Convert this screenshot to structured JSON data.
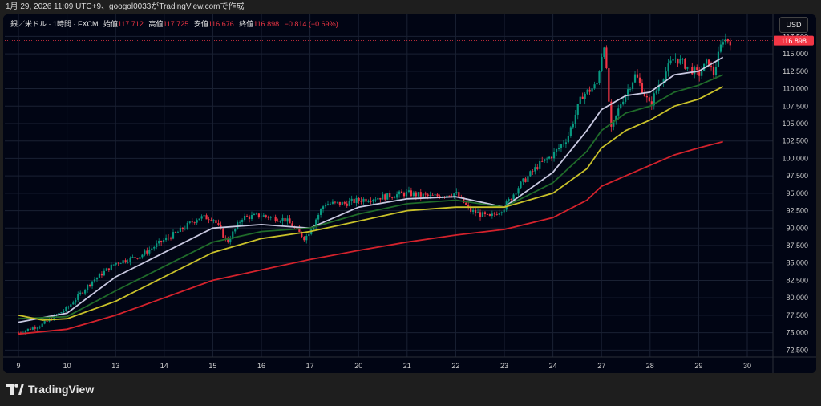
{
  "header": {
    "caption": "1月 29, 2026 11:09 UTC+9、googol0033がTradingView.comで作成"
  },
  "legend": {
    "symbol": "銀／米ドル · 1時間 · FXCM",
    "open_label": "始値",
    "open": "117.712",
    "high_label": "高値",
    "high": "117.725",
    "low_label": "安値",
    "low": "116.676",
    "close_label": "終値",
    "close": "116.898",
    "change": "−0.814 (−0.69%)"
  },
  "currency_button": "USD",
  "price_badge": "116.898",
  "brand": "TradingView",
  "colors": {
    "background": "#010514",
    "up": "#089981",
    "down": "#f23645",
    "ma_fast": "#c8c8e0",
    "ma_mid": "#1f6b2a",
    "ma_slow": "#c9c12a",
    "ma_long": "#d3222c",
    "grid": "#1a2133"
  },
  "chart_data": {
    "type": "candlestick",
    "interval": "1時間",
    "x_ticks": [
      "9",
      "10",
      "13",
      "14",
      "15",
      "16",
      "17",
      "20",
      "21",
      "22",
      "23",
      "24",
      "27",
      "28",
      "29",
      "30"
    ],
    "y_ticks": [
      "72.500",
      "75.000",
      "77.500",
      "80.000",
      "82.500",
      "85.000",
      "87.500",
      "90.000",
      "92.500",
      "95.000",
      "97.500",
      "100.000",
      "102.500",
      "105.000",
      "107.500",
      "110.000",
      "112.500",
      "115.000",
      "117.500"
    ],
    "ylim": [
      71.5,
      119.5
    ],
    "last_price": 116.898,
    "price_path": [
      {
        "x": 0,
        "y": 75.0
      },
      {
        "x": 0.5,
        "y": 76.2
      },
      {
        "x": 1,
        "y": 78.5
      },
      {
        "x": 1.5,
        "y": 82.3
      },
      {
        "x": 2,
        "y": 85.0
      },
      {
        "x": 2.5,
        "y": 86.0
      },
      {
        "x": 3,
        "y": 88.3
      },
      {
        "x": 3.3,
        "y": 89.5
      },
      {
        "x": 3.7,
        "y": 91.5
      },
      {
        "x": 4,
        "y": 91.5
      },
      {
        "x": 4.3,
        "y": 88.0
      },
      {
        "x": 4.6,
        "y": 91.5
      },
      {
        "x": 5,
        "y": 91.8
      },
      {
        "x": 5.5,
        "y": 91.2
      },
      {
        "x": 5.9,
        "y": 88.5
      },
      {
        "x": 6.3,
        "y": 93.5
      },
      {
        "x": 6.7,
        "y": 93.5
      },
      {
        "x": 7,
        "y": 94.0
      },
      {
        "x": 7.5,
        "y": 94.5
      },
      {
        "x": 8,
        "y": 95.0
      },
      {
        "x": 8.5,
        "y": 94.5
      },
      {
        "x": 9,
        "y": 95.0
      },
      {
        "x": 9.3,
        "y": 92.5
      },
      {
        "x": 9.7,
        "y": 91.5
      },
      {
        "x": 10,
        "y": 93.0
      },
      {
        "x": 10.3,
        "y": 96.0
      },
      {
        "x": 10.7,
        "y": 99.0
      },
      {
        "x": 11,
        "y": 100.5
      },
      {
        "x": 11.3,
        "y": 103.0
      },
      {
        "x": 11.6,
        "y": 109.0
      },
      {
        "x": 11.9,
        "y": 110.5
      },
      {
        "x": 12.05,
        "y": 116.8
      },
      {
        "x": 12.2,
        "y": 104.0
      },
      {
        "x": 12.4,
        "y": 108.0
      },
      {
        "x": 12.7,
        "y": 112.0
      },
      {
        "x": 12.9,
        "y": 109.0
      },
      {
        "x": 13,
        "y": 107.5
      },
      {
        "x": 13.2,
        "y": 111.0
      },
      {
        "x": 13.5,
        "y": 114.5
      },
      {
        "x": 13.8,
        "y": 113.0
      },
      {
        "x": 14,
        "y": 112.0
      },
      {
        "x": 14.2,
        "y": 114.0
      },
      {
        "x": 14.3,
        "y": 112.0
      },
      {
        "x": 14.5,
        "y": 117.2
      },
      {
        "x": 14.65,
        "y": 116.9
      }
    ],
    "moving_averages": [
      {
        "name": "MA fast",
        "color": "#c8c8e0",
        "points": [
          {
            "x": 0,
            "y": 76.5
          },
          {
            "x": 1,
            "y": 77.8
          },
          {
            "x": 2,
            "y": 83.0
          },
          {
            "x": 3,
            "y": 86.5
          },
          {
            "x": 4,
            "y": 90.0
          },
          {
            "x": 5,
            "y": 90.5
          },
          {
            "x": 6,
            "y": 90.0
          },
          {
            "x": 7,
            "y": 93.0
          },
          {
            "x": 8,
            "y": 94.2
          },
          {
            "x": 9,
            "y": 94.5
          },
          {
            "x": 10,
            "y": 93.0
          },
          {
            "x": 11,
            "y": 98.0
          },
          {
            "x": 11.7,
            "y": 104.0
          },
          {
            "x": 12,
            "y": 107.0
          },
          {
            "x": 12.5,
            "y": 109.0
          },
          {
            "x": 13,
            "y": 109.5
          },
          {
            "x": 13.5,
            "y": 112.0
          },
          {
            "x": 14,
            "y": 112.5
          },
          {
            "x": 14.5,
            "y": 114.5
          }
        ]
      },
      {
        "name": "MA mid",
        "color": "#1f6b2a",
        "points": [
          {
            "x": 0,
            "y": 77.0
          },
          {
            "x": 1,
            "y": 77.3
          },
          {
            "x": 2,
            "y": 81.0
          },
          {
            "x": 3,
            "y": 84.5
          },
          {
            "x": 4,
            "y": 88.0
          },
          {
            "x": 5,
            "y": 89.5
          },
          {
            "x": 6,
            "y": 90.0
          },
          {
            "x": 7,
            "y": 92.0
          },
          {
            "x": 8,
            "y": 93.5
          },
          {
            "x": 9,
            "y": 94.0
          },
          {
            "x": 10,
            "y": 93.0
          },
          {
            "x": 11,
            "y": 96.5
          },
          {
            "x": 11.7,
            "y": 101.0
          },
          {
            "x": 12,
            "y": 104.0
          },
          {
            "x": 12.5,
            "y": 106.5
          },
          {
            "x": 13,
            "y": 107.5
          },
          {
            "x": 13.5,
            "y": 109.5
          },
          {
            "x": 14,
            "y": 110.5
          },
          {
            "x": 14.5,
            "y": 112.0
          }
        ]
      },
      {
        "name": "MA slow",
        "color": "#c9c12a",
        "points": [
          {
            "x": 0,
            "y": 77.5
          },
          {
            "x": 0.5,
            "y": 76.8
          },
          {
            "x": 1,
            "y": 77.0
          },
          {
            "x": 2,
            "y": 79.5
          },
          {
            "x": 3,
            "y": 83.0
          },
          {
            "x": 4,
            "y": 86.5
          },
          {
            "x": 5,
            "y": 88.5
          },
          {
            "x": 6,
            "y": 89.5
          },
          {
            "x": 7,
            "y": 91.0
          },
          {
            "x": 8,
            "y": 92.5
          },
          {
            "x": 9,
            "y": 93.0
          },
          {
            "x": 10,
            "y": 93.0
          },
          {
            "x": 11,
            "y": 95.0
          },
          {
            "x": 11.7,
            "y": 98.5
          },
          {
            "x": 12,
            "y": 101.5
          },
          {
            "x": 12.5,
            "y": 104.0
          },
          {
            "x": 13,
            "y": 105.5
          },
          {
            "x": 13.5,
            "y": 107.5
          },
          {
            "x": 14,
            "y": 108.5
          },
          {
            "x": 14.5,
            "y": 110.3
          }
        ]
      },
      {
        "name": "MA long",
        "color": "#d3222c",
        "points": [
          {
            "x": 0,
            "y": 74.8
          },
          {
            "x": 1,
            "y": 75.5
          },
          {
            "x": 2,
            "y": 77.5
          },
          {
            "x": 3,
            "y": 80.0
          },
          {
            "x": 4,
            "y": 82.5
          },
          {
            "x": 5,
            "y": 84.0
          },
          {
            "x": 6,
            "y": 85.5
          },
          {
            "x": 7,
            "y": 86.8
          },
          {
            "x": 8,
            "y": 88.0
          },
          {
            "x": 9,
            "y": 89.0
          },
          {
            "x": 10,
            "y": 89.8
          },
          {
            "x": 11,
            "y": 91.5
          },
          {
            "x": 11.7,
            "y": 94.0
          },
          {
            "x": 12,
            "y": 96.0
          },
          {
            "x": 12.5,
            "y": 97.5
          },
          {
            "x": 13,
            "y": 99.0
          },
          {
            "x": 13.5,
            "y": 100.5
          },
          {
            "x": 14,
            "y": 101.5
          },
          {
            "x": 14.5,
            "y": 102.4
          }
        ]
      }
    ],
    "grid": true,
    "legend_position": "top-left",
    "price_scale_side": "right"
  }
}
